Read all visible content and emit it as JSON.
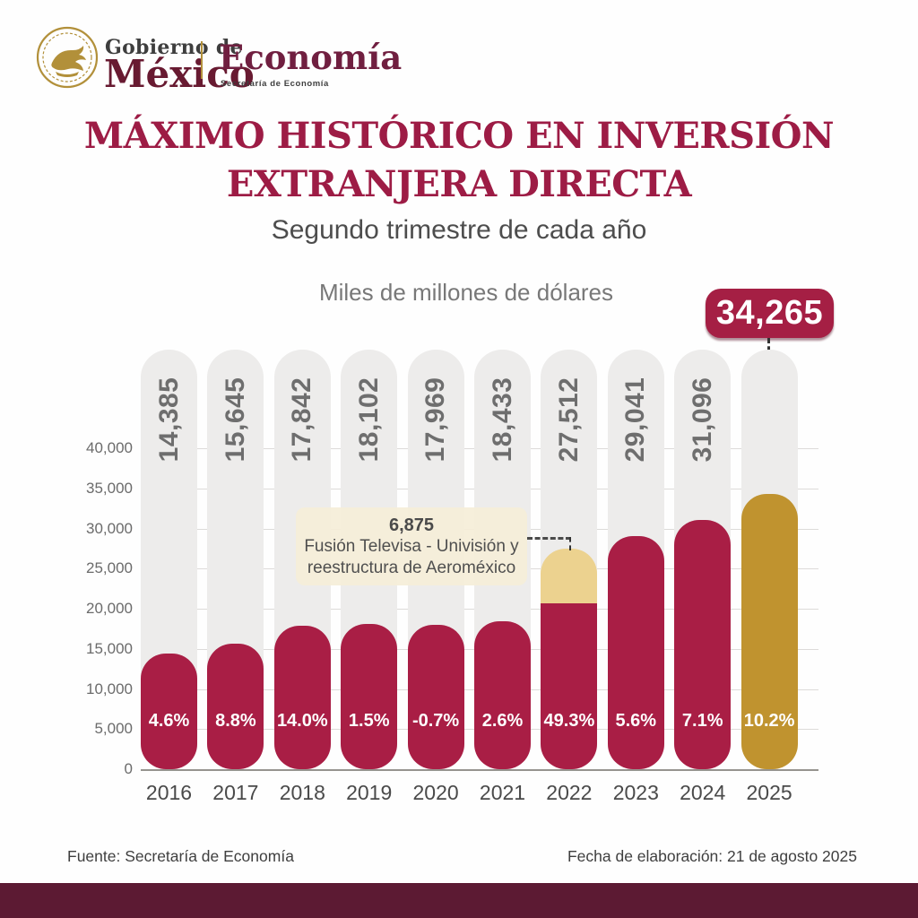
{
  "header": {
    "gobierno_line": "Gobierno de",
    "mexico_wordmark": "México",
    "agency_wordmark": "Economía",
    "agency_subtitle": "Secretaría de Economía"
  },
  "title": {
    "line1": "MÁXIMO HISTÓRICO EN INVERSIÓN",
    "line2": "EXTRANJERA DIRECTA"
  },
  "subtitle": "Segundo trimestre de cada año",
  "record_badge": {
    "value": "34,265"
  },
  "annotation": {
    "value": "6,875",
    "line1": "Fusión Televisa - Univisión y",
    "line2": "reestructura de Aeroméxico"
  },
  "footer": {
    "source": "Fuente: Secretaría de Economía",
    "date": "Fecha de elaboración: 21 de agosto 2025"
  },
  "colors": {
    "bar_maroon": "#a91e45",
    "bar_gold": "#c0932f",
    "cream_segment": "#ecd28f",
    "track_gray": "#edeceb",
    "title_maroon": "#9d1c45",
    "brand_dark_maroon": "#5c1a33",
    "logo_gold": "#b2903a"
  },
  "chart_data": {
    "type": "bar",
    "title": "Miles de millones de dólares",
    "ylabel": "Miles de millones de dólares",
    "xlabel": "",
    "categories": [
      "2016",
      "2017",
      "2018",
      "2019",
      "2020",
      "2021",
      "2022",
      "2023",
      "2024",
      "2025"
    ],
    "values": [
      14385,
      15645,
      17842,
      18102,
      17969,
      18433,
      27512,
      29041,
      31096,
      34265
    ],
    "value_labels": [
      "14,385",
      "15,645",
      "17,842",
      "18,102",
      "17,969",
      "18,433",
      "27,512",
      "29,041",
      "31,096",
      "34,265"
    ],
    "growth_labels": [
      "4.6%",
      "8.8%",
      "14.0%",
      "1.5%",
      "-0.7%",
      "2.6%",
      "49.3%",
      "5.6%",
      "7.1%",
      "10.2%"
    ],
    "highlight_index": 9,
    "special_segment": {
      "index": 6,
      "amount": 6875,
      "label": "6,875",
      "description": "Fusión Televisa - Univisión y reestructura de Aeroméxico"
    },
    "ylim": [
      0,
      40000
    ],
    "grid": true,
    "legend": "none",
    "yticks": [
      {
        "v": 0,
        "label": "0"
      },
      {
        "v": 5000,
        "label": "5,000"
      },
      {
        "v": 10000,
        "label": "10,000"
      },
      {
        "v": 15000,
        "label": "15,000"
      },
      {
        "v": 20000,
        "label": "20,000"
      },
      {
        "v": 25000,
        "label": "25,000"
      },
      {
        "v": 30000,
        "label": "30,000"
      },
      {
        "v": 35000,
        "label": "35,000"
      },
      {
        "v": 40000,
        "label": "40,000"
      }
    ]
  }
}
